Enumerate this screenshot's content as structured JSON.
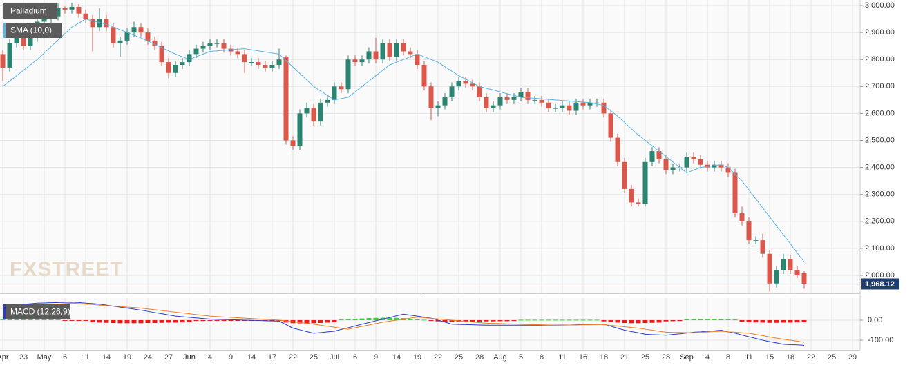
{
  "chart_data": {
    "type": "candlestick",
    "title": "Palladium",
    "watermark": "FXSTREET",
    "up_color": "#2b8470",
    "down_color": "#d9574b",
    "categories": [
      "Apr",
      null,
      null,
      "23",
      null,
      null,
      "May",
      null,
      null,
      "6",
      null,
      null,
      "11",
      null,
      null,
      "14",
      null,
      null,
      "19",
      null,
      null,
      "24",
      null,
      null,
      "27",
      null,
      null,
      "Jun",
      null,
      null,
      "4",
      null,
      null,
      "9",
      null,
      null,
      "14",
      null,
      null,
      "17",
      null,
      null,
      "22",
      null,
      null,
      "25",
      null,
      null,
      "Jul",
      null,
      null,
      "6",
      null,
      null,
      "9",
      null,
      null,
      "14",
      null,
      null,
      "19",
      null,
      null,
      "22",
      null,
      null,
      "25",
      null,
      null,
      "28",
      null,
      null,
      "Aug",
      null,
      null,
      "5",
      null,
      null,
      "8",
      null,
      null,
      "11",
      null,
      null,
      "16",
      null,
      null,
      "18",
      null,
      null,
      "21",
      null,
      null,
      "25",
      null,
      null,
      "28",
      null,
      null,
      "Sep",
      null,
      null,
      "4",
      null,
      null,
      "8",
      null,
      null,
      "11",
      null,
      null,
      "15",
      null,
      null,
      "18",
      null,
      null,
      "22",
      null,
      null,
      "25",
      null,
      null,
      "29"
    ],
    "ohlc": [
      [
        2820,
        2835,
        2720,
        2770
      ],
      [
        2770,
        2875,
        2755,
        2860
      ],
      [
        2860,
        2915,
        2845,
        2900
      ],
      [
        2900,
        2915,
        2835,
        2850
      ],
      [
        2850,
        2895,
        2835,
        2880
      ],
      [
        2880,
        2955,
        2865,
        2940
      ],
      [
        2940,
        2965,
        2925,
        2950
      ],
      [
        2950,
        2975,
        2935,
        2960
      ],
      [
        2960,
        3010,
        2945,
        2990
      ],
      [
        2990,
        3000,
        2970,
        2985
      ],
      [
        2985,
        3010,
        2970,
        2995
      ],
      [
        2995,
        3005,
        2955,
        2970
      ],
      [
        2970,
        2985,
        2935,
        2950
      ],
      [
        2950,
        2965,
        2830,
        2920
      ],
      [
        2920,
        2990,
        2905,
        2950
      ],
      [
        2950,
        2965,
        2905,
        2920
      ],
      [
        2920,
        2935,
        2845,
        2860
      ],
      [
        2860,
        2885,
        2810,
        2870
      ],
      [
        2870,
        2915,
        2855,
        2900
      ],
      [
        2900,
        2940,
        2885,
        2920
      ],
      [
        2920,
        2935,
        2885,
        2900
      ],
      [
        2900,
        2915,
        2855,
        2870
      ],
      [
        2870,
        2885,
        2835,
        2850
      ],
      [
        2850,
        2865,
        2775,
        2790
      ],
      [
        2790,
        2805,
        2730,
        2750
      ],
      [
        2750,
        2795,
        2735,
        2780
      ],
      [
        2780,
        2805,
        2765,
        2790
      ],
      [
        2790,
        2835,
        2775,
        2820
      ],
      [
        2820,
        2855,
        2805,
        2840
      ],
      [
        2840,
        2865,
        2825,
        2850
      ],
      [
        2850,
        2875,
        2835,
        2860
      ],
      [
        2860,
        2875,
        2845,
        2860
      ],
      [
        2860,
        2875,
        2825,
        2840
      ],
      [
        2840,
        2855,
        2815,
        2830
      ],
      [
        2830,
        2845,
        2805,
        2820
      ],
      [
        2820,
        2835,
        2750,
        2790
      ],
      [
        2790,
        2805,
        2775,
        2790
      ],
      [
        2790,
        2805,
        2765,
        2780
      ],
      [
        2780,
        2795,
        2755,
        2770
      ],
      [
        2770,
        2795,
        2755,
        2780
      ],
      [
        2780,
        2840,
        2765,
        2800
      ],
      [
        2810,
        2815,
        2485,
        2500
      ],
      [
        2500,
        2515,
        2465,
        2480
      ],
      [
        2480,
        2615,
        2465,
        2600
      ],
      [
        2600,
        2640,
        2585,
        2620
      ],
      [
        2620,
        2635,
        2555,
        2570
      ],
      [
        2570,
        2655,
        2555,
        2640
      ],
      [
        2640,
        2665,
        2625,
        2650
      ],
      [
        2650,
        2715,
        2635,
        2700
      ],
      [
        2700,
        2715,
        2675,
        2690
      ],
      [
        2690,
        2815,
        2675,
        2800
      ],
      [
        2800,
        2815,
        2775,
        2790
      ],
      [
        2790,
        2815,
        2775,
        2800
      ],
      [
        2800,
        2845,
        2785,
        2830
      ],
      [
        2830,
        2880,
        2785,
        2800
      ],
      [
        2800,
        2875,
        2785,
        2860
      ],
      [
        2860,
        2875,
        2795,
        2810
      ],
      [
        2810,
        2875,
        2795,
        2860
      ],
      [
        2860,
        2875,
        2815,
        2830
      ],
      [
        2830,
        2845,
        2805,
        2820
      ],
      [
        2820,
        2835,
        2765,
        2780
      ],
      [
        2780,
        2795,
        2685,
        2700
      ],
      [
        2700,
        2715,
        2575,
        2620
      ],
      [
        2620,
        2645,
        2590,
        2630
      ],
      [
        2630,
        2675,
        2615,
        2660
      ],
      [
        2660,
        2715,
        2645,
        2700
      ],
      [
        2700,
        2735,
        2685,
        2720
      ],
      [
        2720,
        2735,
        2695,
        2710
      ],
      [
        2710,
        2725,
        2685,
        2700
      ],
      [
        2700,
        2715,
        2645,
        2660
      ],
      [
        2660,
        2675,
        2605,
        2620
      ],
      [
        2620,
        2645,
        2605,
        2630
      ],
      [
        2630,
        2675,
        2615,
        2660
      ],
      [
        2660,
        2675,
        2635,
        2650
      ],
      [
        2650,
        2675,
        2635,
        2660
      ],
      [
        2660,
        2695,
        2645,
        2680
      ],
      [
        2680,
        2695,
        2635,
        2650
      ],
      [
        2650,
        2665,
        2635,
        2650
      ],
      [
        2650,
        2665,
        2625,
        2640
      ],
      [
        2640,
        2655,
        2605,
        2620
      ],
      [
        2620,
        2635,
        2605,
        2620
      ],
      [
        2620,
        2645,
        2605,
        2630
      ],
      [
        2630,
        2645,
        2595,
        2610
      ],
      [
        2610,
        2655,
        2595,
        2640
      ],
      [
        2640,
        2655,
        2615,
        2630
      ],
      [
        2630,
        2655,
        2615,
        2640
      ],
      [
        2640,
        2655,
        2625,
        2640
      ],
      [
        2640,
        2655,
        2585,
        2600
      ],
      [
        2600,
        2615,
        2495,
        2510
      ],
      [
        2510,
        2525,
        2405,
        2420
      ],
      [
        2420,
        2435,
        2305,
        2320
      ],
      [
        2320,
        2335,
        2255,
        2270
      ],
      [
        2270,
        2285,
        2255,
        2265
      ],
      [
        2265,
        2435,
        2255,
        2420
      ],
      [
        2420,
        2475,
        2405,
        2460
      ],
      [
        2460,
        2475,
        2415,
        2430
      ],
      [
        2430,
        2445,
        2375,
        2390
      ],
      [
        2390,
        2415,
        2375,
        2400
      ],
      [
        2400,
        2415,
        2385,
        2400
      ],
      [
        2400,
        2455,
        2385,
        2440
      ],
      [
        2440,
        2455,
        2415,
        2430
      ],
      [
        2430,
        2445,
        2395,
        2410
      ],
      [
        2410,
        2425,
        2385,
        2400
      ],
      [
        2400,
        2425,
        2385,
        2410
      ],
      [
        2410,
        2425,
        2385,
        2400
      ],
      [
        2400,
        2415,
        2365,
        2380
      ],
      [
        2380,
        2395,
        2215,
        2230
      ],
      [
        2230,
        2255,
        2185,
        2200
      ],
      [
        2200,
        2215,
        2115,
        2130
      ],
      [
        2130,
        2145,
        2115,
        2130
      ],
      [
        2130,
        2155,
        2065,
        2080
      ],
      [
        2080,
        2095,
        1940,
        1970
      ],
      [
        1970,
        2035,
        1955,
        2020
      ],
      [
        2020,
        2080,
        2005,
        2060
      ],
      [
        2060,
        2075,
        2005,
        2020
      ],
      [
        2020,
        2035,
        1990,
        2000
      ],
      [
        2010,
        2015,
        1950,
        1968.12
      ]
    ],
    "sma": {
      "name": "SMA (10,0)",
      "color": "#5ab4e6",
      "values": [
        2700,
        2720,
        2740,
        2760,
        2780,
        2800,
        2824,
        2848,
        2872,
        2896,
        2920,
        2935,
        2950,
        2943,
        2937,
        2930,
        2920,
        2910,
        2900,
        2890,
        2880,
        2868,
        2856,
        2844,
        2832,
        2820,
        2810,
        2800,
        2810,
        2820,
        2830,
        2832,
        2834,
        2836,
        2838,
        2840,
        2836,
        2832,
        2828,
        2824,
        2820,
        2796,
        2772,
        2748,
        2724,
        2700,
        2683,
        2667,
        2650,
        2655,
        2660,
        2680,
        2700,
        2720,
        2740,
        2760,
        2780,
        2790,
        2800,
        2810,
        2820,
        2810,
        2800,
        2790,
        2773,
        2757,
        2740,
        2727,
        2713,
        2700,
        2693,
        2687,
        2680,
        2673,
        2667,
        2660,
        2658,
        2656,
        2654,
        2652,
        2650,
        2648,
        2646,
        2644,
        2642,
        2640,
        2635,
        2630,
        2610,
        2590,
        2567,
        2543,
        2520,
        2500,
        2480,
        2460,
        2440,
        2420,
        2400,
        2380,
        2390,
        2400,
        2403,
        2407,
        2410,
        2400,
        2375,
        2350,
        2317,
        2283,
        2250,
        2217,
        2183,
        2150,
        2117,
        2083,
        2050
      ]
    },
    "ylim": [
      1933.5,
      3020.5
    ],
    "yticks": [
      {
        "value": 2000,
        "label": "2,000.00"
      },
      {
        "value": 2100,
        "label": "2,100.00"
      },
      {
        "value": 2200,
        "label": "2,200.00"
      },
      {
        "value": 2300,
        "label": "2,300.00"
      },
      {
        "value": 2400,
        "label": "2,400.00"
      },
      {
        "value": 2500,
        "label": "2,500.00"
      },
      {
        "value": 2600,
        "label": "2,600.00"
      },
      {
        "value": 2700,
        "label": "2,700.00"
      },
      {
        "value": 2800,
        "label": "2,800.00"
      },
      {
        "value": 2900,
        "label": "2,900.00"
      },
      {
        "value": 3000,
        "label": "3,000.00"
      }
    ],
    "hline": 2083,
    "last_price": {
      "value": 1968.12,
      "label": "1,968.12"
    },
    "grid": true,
    "macd": {
      "name": "MACD (12,26,9)",
      "ylim": [
        -148,
        110
      ],
      "yticks": [
        {
          "value": 0,
          "label": "0.00"
        },
        {
          "value": -100,
          "label": "-100.00"
        }
      ],
      "macd_color": "#2a3ad0",
      "signal_color": "#f07d1e",
      "hist_up_color": "#22dd22",
      "hist_down_color": "#ee1a1a",
      "macd": [
        70,
        73,
        76,
        79,
        82,
        85,
        86,
        87,
        88,
        89,
        90,
        88,
        85,
        83,
        80,
        75,
        70,
        65,
        60,
        55,
        50,
        44,
        38,
        32,
        26,
        20,
        17,
        14,
        11,
        8,
        5,
        4,
        3,
        2,
        1,
        0,
        -1,
        -2,
        -3,
        -4,
        -5,
        -22,
        -40,
        -48,
        -57,
        -65,
        -62,
        -58,
        -55,
        -46,
        -38,
        -29,
        -20,
        -12,
        -3,
        5,
        13,
        22,
        30,
        25,
        20,
        15,
        10,
        0,
        -10,
        -20,
        -21,
        -22,
        -23,
        -24,
        -25,
        -25,
        -25,
        -25,
        -25,
        -25,
        -25,
        -25,
        -25,
        -25,
        -25,
        -24,
        -24,
        -23,
        -22,
        -21,
        -21,
        -20,
        -30,
        -40,
        -50,
        -57,
        -63,
        -70,
        -72,
        -73,
        -75,
        -71,
        -68,
        -64,
        -60,
        -58,
        -55,
        -53,
        -50,
        -58,
        -65,
        -74,
        -83,
        -91,
        -100,
        -107,
        -113,
        -120,
        -122,
        -123,
        -125
      ],
      "signal": [
        60,
        63,
        65,
        68,
        70,
        73,
        75,
        78,
        80,
        83,
        85,
        83,
        80,
        78,
        75,
        73,
        70,
        68,
        65,
        63,
        60,
        56,
        52,
        48,
        44,
        40,
        36,
        32,
        28,
        24,
        20,
        18,
        16,
        14,
        12,
        10,
        8,
        6,
        4,
        2,
        0,
        -4,
        -8,
        -12,
        -16,
        -20,
        -25,
        -30,
        -35,
        -40,
        -45,
        -38,
        -31,
        -24,
        -17,
        -10,
        -5,
        0,
        5,
        10,
        15,
        12,
        9,
        6,
        3,
        0,
        -3,
        -6,
        -9,
        -12,
        -15,
        -16,
        -17,
        -18,
        -19,
        -20,
        -21,
        -22,
        -23,
        -24,
        -25,
        -25,
        -24,
        -24,
        -23,
        -23,
        -22,
        -22,
        -26,
        -29,
        -33,
        -36,
        -40,
        -45,
        -50,
        -55,
        -60,
        -61,
        -61,
        -62,
        -62,
        -60,
        -59,
        -57,
        -55,
        -58,
        -60,
        -63,
        -65,
        -71,
        -77,
        -84,
        -90,
        -95,
        -100,
        -105,
        -110
      ],
      "histogram": [
        5,
        5,
        5,
        5,
        5,
        5,
        5,
        5,
        5,
        -2,
        -2,
        -3,
        -3,
        -10,
        -12,
        -13,
        -14,
        -15,
        -15,
        -15,
        -15,
        -14,
        -14,
        -13,
        -12,
        -12,
        -11,
        -10,
        -4,
        -4,
        -3,
        -3,
        -3,
        -3,
        -3,
        -3,
        -3,
        -3,
        -3,
        -3,
        -4,
        -12,
        -15,
        -16,
        -16,
        -15,
        -14,
        -12,
        -10,
        3,
        5,
        7,
        8,
        10,
        11,
        12,
        12,
        11,
        10,
        6,
        4,
        2,
        -4,
        -6,
        -8,
        -8,
        -8,
        -8,
        -7,
        -7,
        -6,
        -6,
        -5,
        -5,
        -4,
        2,
        2,
        2,
        2,
        2,
        2,
        2,
        2,
        2,
        2,
        2,
        2,
        -6,
        -9,
        -12,
        -14,
        -15,
        -15,
        -14,
        -13,
        -12,
        -6,
        -5,
        -4,
        5,
        5,
        5,
        6,
        6,
        5,
        4,
        3,
        -8,
        -10,
        -11,
        -12,
        -13,
        -13,
        -12,
        -12,
        -11,
        -10
      ]
    }
  }
}
